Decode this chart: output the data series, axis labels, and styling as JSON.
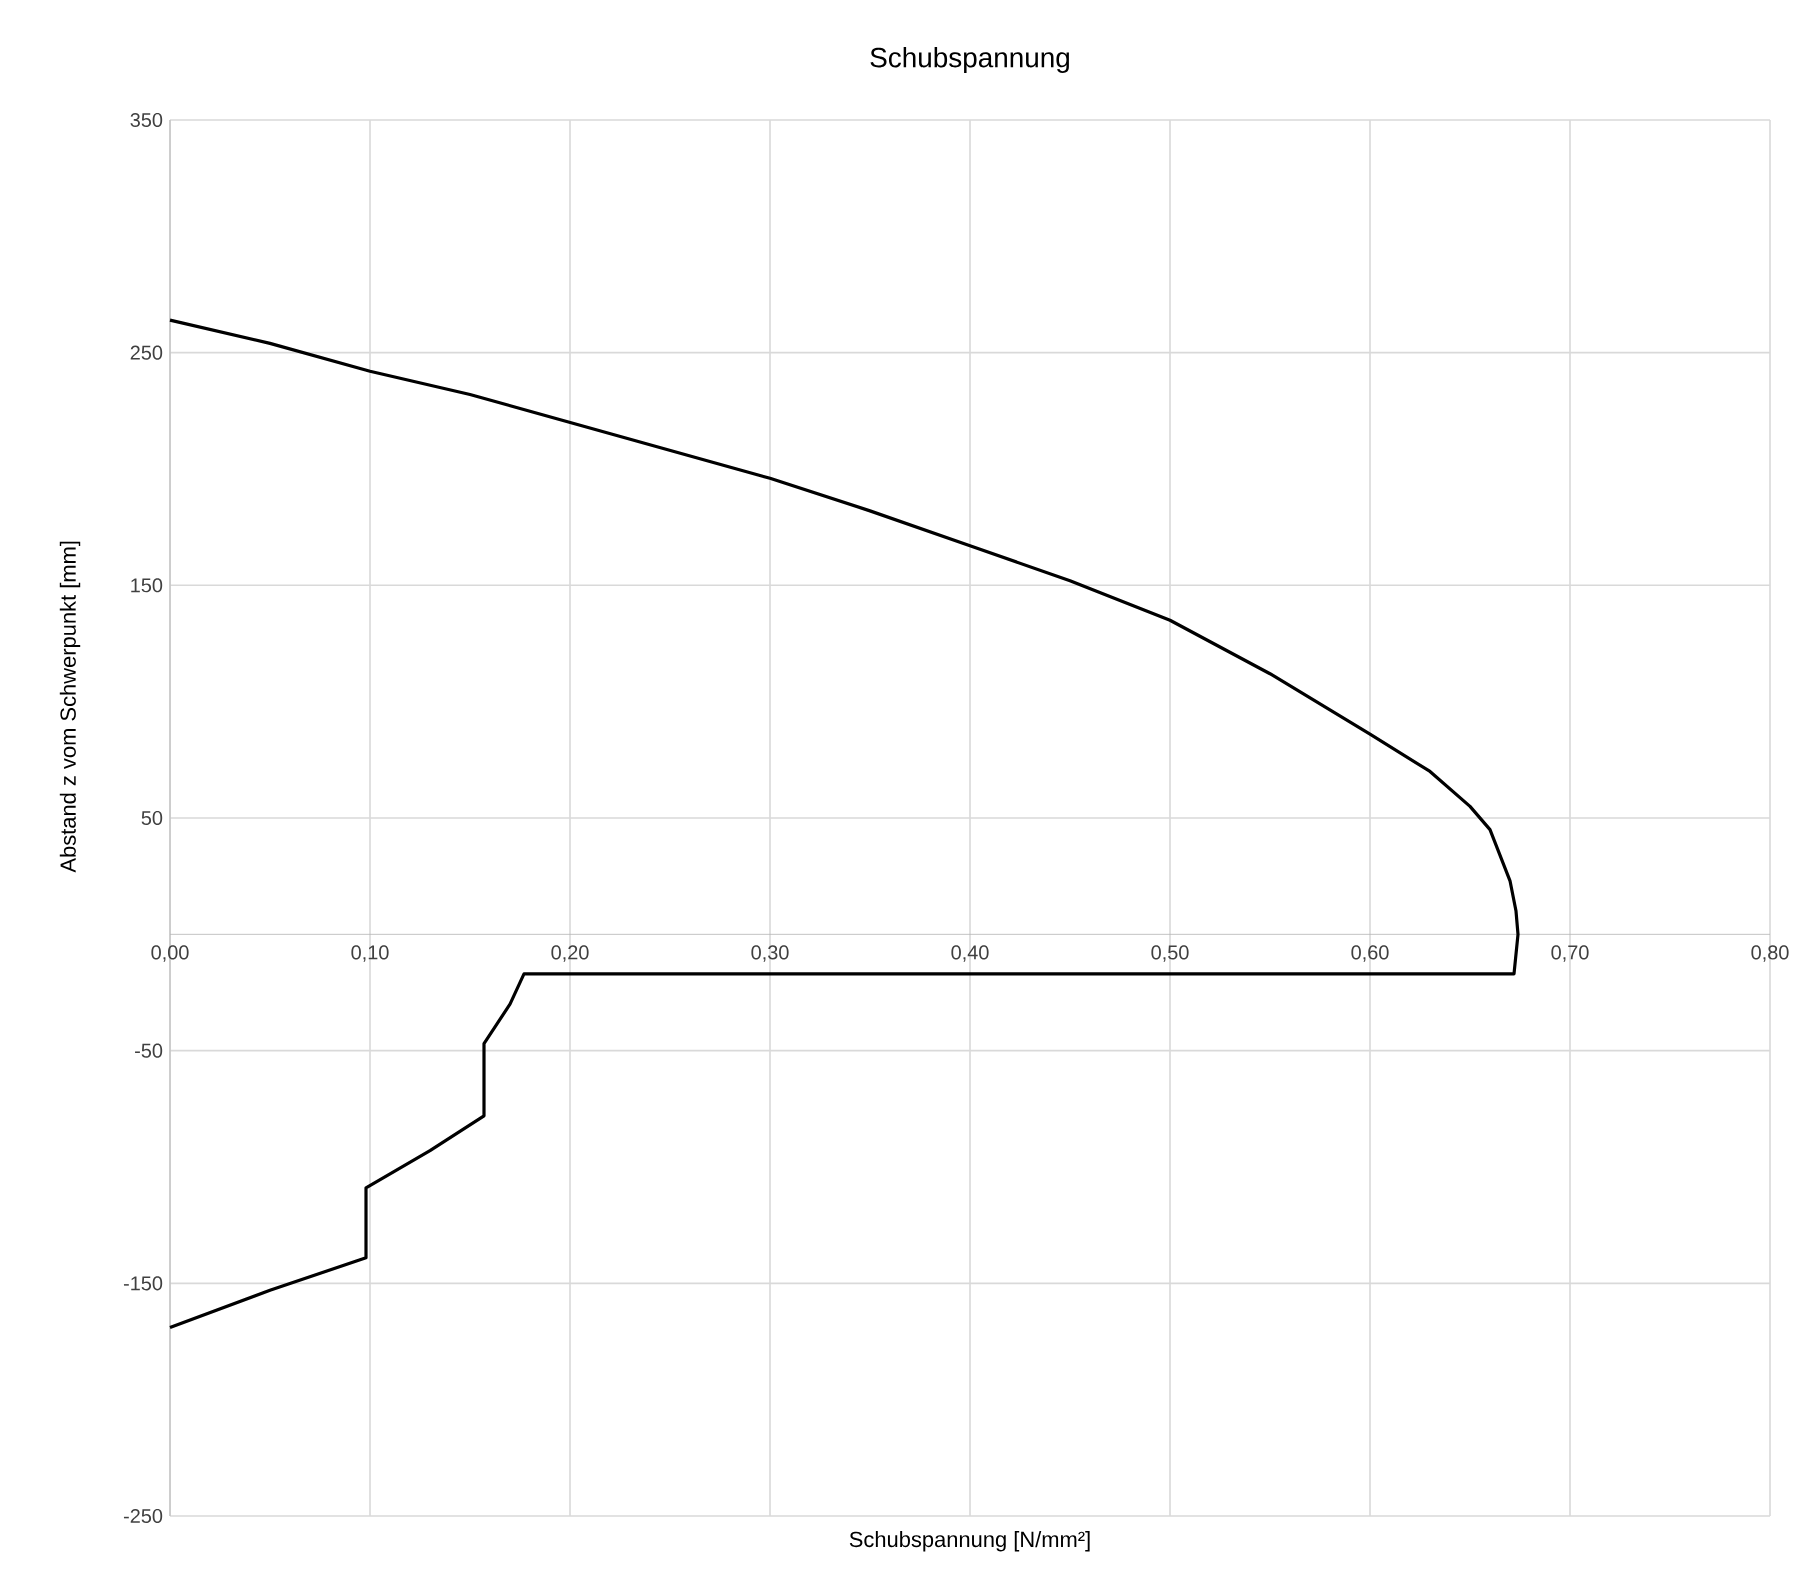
{
  "chart_data": {
    "type": "line",
    "title": "Schubspannung",
    "xlabel": "Schubspannung [N/mm²]",
    "ylabel": "Abstand z vom Schwerpunkt [mm]",
    "series": [
      {
        "color": "#000000",
        "x": [
          0,
          0.05,
          0.1,
          0.15,
          0.2,
          0.25,
          0.3,
          0.35,
          0.4,
          0.45,
          0.5,
          0.55,
          0.6,
          0.63,
          0.65,
          0.66,
          0.67,
          0.673,
          0.674,
          0.672,
          0.177,
          0.17,
          0.157,
          0.157,
          0.13,
          0.098,
          0.098,
          0.05,
          0
        ],
        "values": [
          264,
          254,
          242,
          232,
          220,
          208,
          196,
          182,
          167,
          152,
          135,
          112,
          86,
          70,
          55,
          45,
          23,
          10,
          0,
          -17,
          -17,
          -30,
          -47,
          -78,
          -93,
          -109,
          -139,
          -153,
          -169
        ]
      }
    ],
    "xlim": [
      0,
      0.8
    ],
    "ylim": [
      -250,
      350
    ],
    "xticks": [
      {
        "value": 0,
        "label": "0,00"
      },
      {
        "value": 0.1,
        "label": "0,10"
      },
      {
        "value": 0.2,
        "label": "0,20"
      },
      {
        "value": 0.3,
        "label": "0,30"
      },
      {
        "value": 0.4,
        "label": "0,40"
      },
      {
        "value": 0.5,
        "label": "0,50"
      },
      {
        "value": 0.6,
        "label": "0,60"
      },
      {
        "value": 0.7,
        "label": "0,70"
      },
      {
        "value": 0.8,
        "label": "0,80"
      }
    ],
    "yticks": [
      -250,
      -150,
      -50,
      50,
      150,
      250,
      350
    ],
    "grid": true
  }
}
